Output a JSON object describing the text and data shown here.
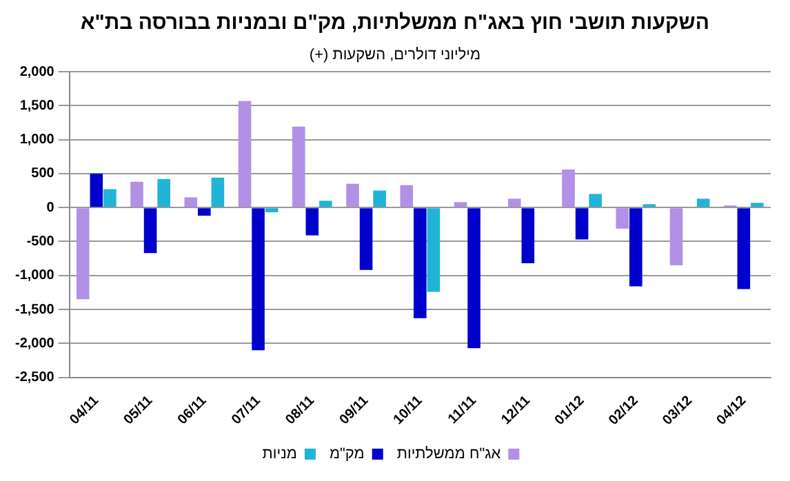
{
  "chart_data": {
    "type": "bar",
    "title": "השקעות תושבי חוץ באג\"ח ממשלתיות, מק\"ם ובמניות בבורסה בת\"א",
    "subtitle": "מיליוני דולרים, השקעות (+)",
    "categories": [
      "04/11",
      "05/11",
      "06/11",
      "07/11",
      "08/11",
      "09/11",
      "10/11",
      "11/11",
      "12/11",
      "01/12",
      "02/12",
      "03/12",
      "04/12"
    ],
    "series": [
      {
        "name": "אג\"ח ממשלתיות",
        "color": "#b290e6",
        "values": [
          -1350,
          380,
          150,
          1570,
          1190,
          350,
          330,
          80,
          130,
          560,
          -310,
          -850,
          30
        ]
      },
      {
        "name": "מק\"מ",
        "color": "#0000cc",
        "values": [
          500,
          -670,
          -120,
          -2100,
          -410,
          -920,
          -1630,
          -2070,
          -820,
          -470,
          -1160,
          null,
          -1200
        ]
      },
      {
        "name": "מניות",
        "color": "#20b4d6",
        "values": [
          270,
          420,
          440,
          -70,
          100,
          250,
          -1240,
          null,
          null,
          200,
          50,
          130,
          70
        ]
      }
    ],
    "ylim": [
      -2500,
      2000
    ],
    "yticks": [
      {
        "value": -2500,
        "label": "-2,500"
      },
      {
        "value": -2000,
        "label": "-2,000"
      },
      {
        "value": -1500,
        "label": "-1,500"
      },
      {
        "value": -1000,
        "label": "-1,000"
      },
      -500,
      0,
      500,
      {
        "value": 1000,
        "label": "1,000"
      },
      {
        "value": 1500,
        "label": "1,500"
      },
      {
        "value": 2000,
        "label": "2,000"
      }
    ],
    "grid": "y",
    "legend": "bottom"
  }
}
